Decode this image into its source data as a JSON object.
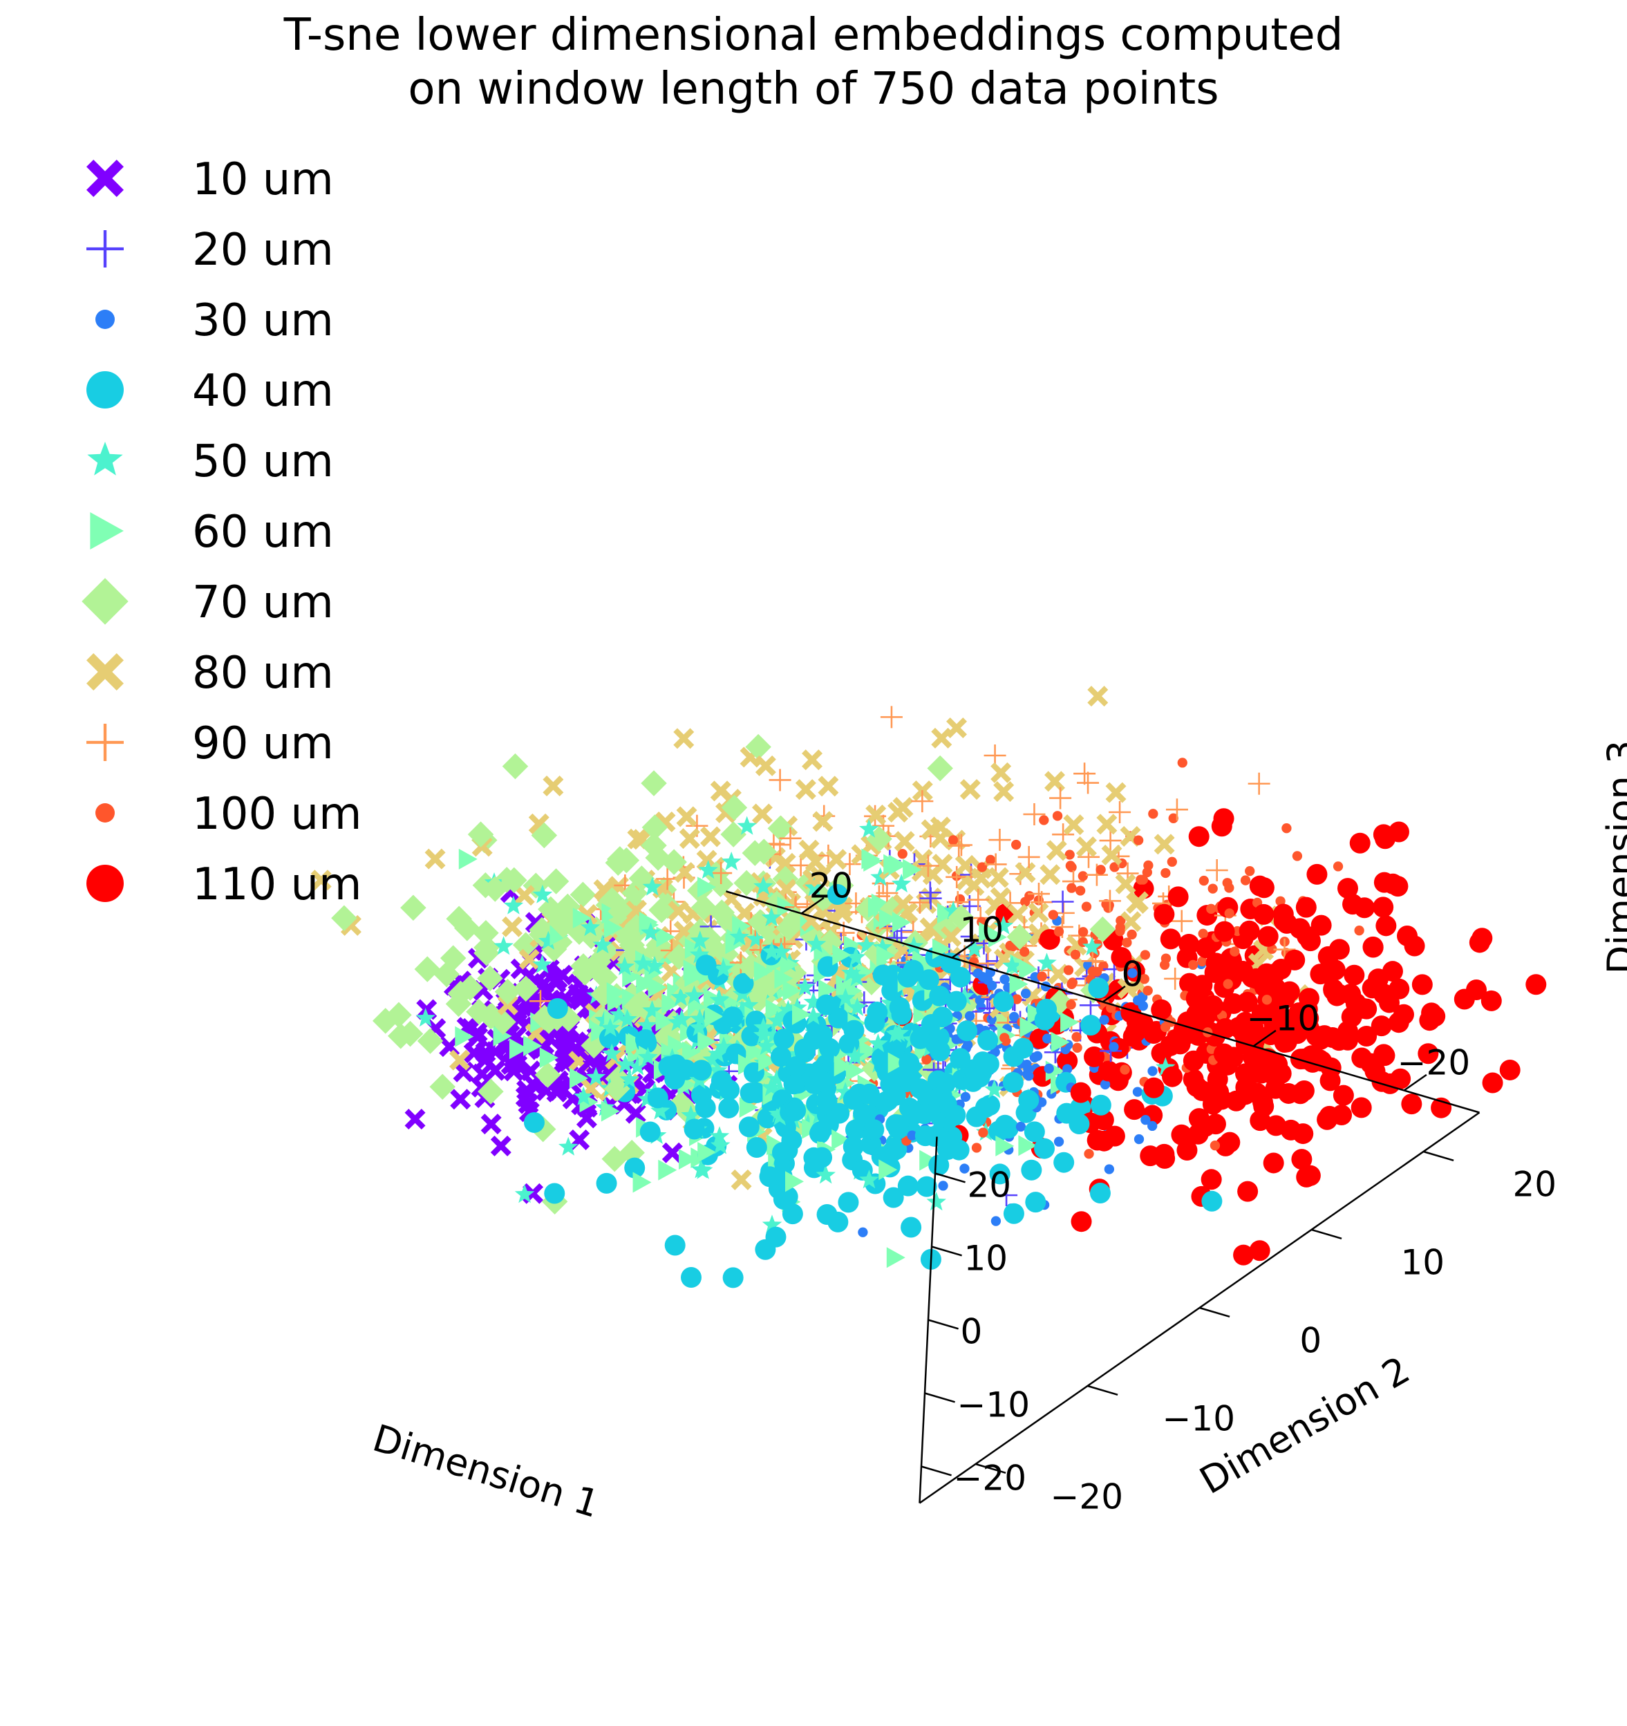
{
  "chart_data": {
    "type": "scatter",
    "projection": "3d",
    "title": [
      "T-sne lower dimensional embeddings computed",
      "on window length of 750 data points"
    ],
    "xlabel": "Dimension 1",
    "ylabel": "Dimension 2",
    "zlabel": "Dimension 3",
    "xticks": [
      20,
      10,
      0,
      -10,
      -20
    ],
    "yticks": [
      -20,
      -10,
      0,
      10,
      20
    ],
    "zticks": [
      20,
      10,
      0,
      -10,
      -20
    ],
    "xtick_labels": [
      "20",
      "10",
      "0",
      "−10",
      "−20"
    ],
    "ytick_labels": [
      "−20",
      "−10",
      "0",
      "10",
      "20"
    ],
    "ztick_labels": [
      "20",
      "10",
      "0",
      "−10",
      "−20"
    ],
    "xlim": [
      -25,
      25
    ],
    "ylim": [
      -25,
      25
    ],
    "zlim": [
      -25,
      25
    ],
    "grid": false,
    "legend_position": "upper-left",
    "series": [
      {
        "name": "10 um",
        "marker": "X",
        "color": "#8000ff",
        "count": 220,
        "center": [
          2,
          -21,
          18
        ],
        "spread": [
          4,
          3,
          4.5
        ]
      },
      {
        "name": "20 um",
        "marker": "plus",
        "color": "#5641fd",
        "count": 110,
        "center": [
          -6,
          2,
          3
        ],
        "spread": [
          6,
          5,
          5
        ]
      },
      {
        "name": "30 um",
        "marker": "dot",
        "color": "#2c7ef7",
        "count": 190,
        "center": [
          -9,
          4,
          -5
        ],
        "spread": [
          4,
          4,
          6
        ]
      },
      {
        "name": "40 um",
        "marker": "circle",
        "color": "#18cde3",
        "count": 260,
        "center": [
          2,
          6,
          -18
        ],
        "spread": [
          6,
          6,
          5
        ]
      },
      {
        "name": "50 um",
        "marker": "star",
        "color": "#4cf2ce",
        "count": 170,
        "center": [
          8,
          5,
          -13
        ],
        "spread": [
          7,
          6,
          6
        ]
      },
      {
        "name": "60 um",
        "marker": "triangle",
        "color": "#80ffb4",
        "count": 190,
        "center": [
          6,
          4,
          -10
        ],
        "spread": [
          7,
          6,
          7
        ]
      },
      {
        "name": "70 um",
        "marker": "diamond",
        "color": "#b2f396",
        "count": 240,
        "center": [
          10,
          0,
          1
        ],
        "spread": [
          8,
          7,
          6
        ]
      },
      {
        "name": "80 um",
        "marker": "X",
        "color": "#e6cd73",
        "count": 260,
        "center": [
          2,
          2,
          7
        ],
        "spread": [
          9,
          8,
          6
        ]
      },
      {
        "name": "90 um",
        "marker": "plus",
        "color": "#ff9853",
        "count": 140,
        "center": [
          -2,
          6,
          8
        ],
        "spread": [
          8,
          7,
          6
        ]
      },
      {
        "name": "100 um",
        "marker": "dot",
        "color": "#ff562c",
        "count": 190,
        "center": [
          -10,
          10,
          2
        ],
        "spread": [
          5,
          6,
          8
        ]
      },
      {
        "name": "110 um",
        "marker": "circle",
        "color": "#ff0000",
        "count": 300,
        "center": [
          -18,
          14,
          -6
        ],
        "spread": [
          5,
          6,
          7
        ]
      }
    ]
  }
}
